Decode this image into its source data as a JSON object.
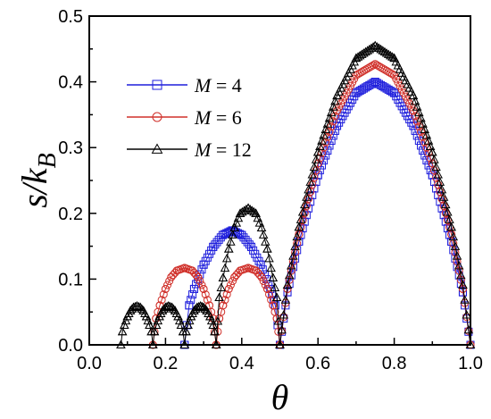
{
  "chart_data": {
    "type": "scatter",
    "xlabel": "θ",
    "ylabel": "s/k_B",
    "ylabel_main": "s/k",
    "ylabel_sub": "B",
    "xlim": [
      0.0,
      1.0
    ],
    "ylim": [
      0.0,
      0.5
    ],
    "xticks": [
      "0.0",
      "0.2",
      "0.4",
      "0.6",
      "0.8",
      "1.0"
    ],
    "yticks": [
      "0.0",
      "0.1",
      "0.2",
      "0.3",
      "0.4",
      "0.5"
    ],
    "grid": false,
    "legend_position": "upper-left",
    "series": [
      {
        "name": "M = 4",
        "marker": "square",
        "color": "#1f1fdc",
        "lobes": [
          {
            "x": [
              0.25,
              0.262,
              0.275,
              0.3,
              0.325,
              0.35,
              0.375,
              0.4,
              0.425,
              0.45,
              0.475,
              0.488,
              0.5
            ],
            "y": [
              0.0,
              0.06,
              0.085,
              0.122,
              0.149,
              0.167,
              0.174,
              0.167,
              0.149,
              0.122,
              0.085,
              0.06,
              0.0
            ]
          },
          {
            "x": [
              0.5,
              0.52,
              0.55,
              0.6,
              0.65,
              0.7,
              0.75,
              0.8,
              0.85,
              0.9,
              0.95,
              0.98,
              1.0
            ],
            "y": [
              0.0,
              0.08,
              0.157,
              0.258,
              0.333,
              0.383,
              0.4,
              0.383,
              0.333,
              0.258,
              0.157,
              0.08,
              0.0
            ]
          }
        ]
      },
      {
        "name": "M = 6",
        "marker": "circle",
        "color": "#d0302a",
        "lobes": [
          {
            "x": [
              0.167,
              0.175,
              0.185,
              0.2,
              0.215,
              0.23,
              0.25,
              0.27,
              0.285,
              0.3,
              0.315,
              0.325,
              0.333
            ],
            "y": [
              0.0,
              0.04,
              0.06,
              0.085,
              0.103,
              0.113,
              0.117,
              0.113,
              0.103,
              0.085,
              0.06,
              0.04,
              0.0
            ]
          },
          {
            "x": [
              0.333,
              0.341,
              0.351,
              0.366,
              0.381,
              0.396,
              0.417,
              0.437,
              0.452,
              0.467,
              0.482,
              0.492,
              0.5
            ],
            "y": [
              0.0,
              0.04,
              0.06,
              0.085,
              0.103,
              0.113,
              0.117,
              0.113,
              0.103,
              0.085,
              0.06,
              0.04,
              0.0
            ]
          },
          {
            "x": [
              0.5,
              0.52,
              0.55,
              0.6,
              0.65,
              0.7,
              0.75,
              0.8,
              0.85,
              0.9,
              0.95,
              0.98,
              1.0
            ],
            "y": [
              0.0,
              0.085,
              0.168,
              0.276,
              0.356,
              0.41,
              0.427,
              0.41,
              0.356,
              0.276,
              0.168,
              0.085,
              0.0
            ]
          }
        ]
      },
      {
        "name": "M = 12",
        "marker": "triangle",
        "color": "#000000",
        "lobes": [
          {
            "x": [
              0.083,
              0.087,
              0.092,
              0.1,
              0.108,
              0.116,
              0.125,
              0.134,
              0.142,
              0.15,
              0.158,
              0.163,
              0.167
            ],
            "y": [
              0.0,
              0.02,
              0.03,
              0.043,
              0.052,
              0.057,
              0.059,
              0.057,
              0.052,
              0.043,
              0.03,
              0.02,
              0.0
            ]
          },
          {
            "x": [
              0.167,
              0.171,
              0.176,
              0.184,
              0.192,
              0.2,
              0.208,
              0.217,
              0.225,
              0.233,
              0.241,
              0.246,
              0.25
            ],
            "y": [
              0.0,
              0.02,
              0.03,
              0.043,
              0.052,
              0.057,
              0.059,
              0.057,
              0.052,
              0.043,
              0.03,
              0.02,
              0.0
            ]
          },
          {
            "x": [
              0.25,
              0.254,
              0.259,
              0.267,
              0.275,
              0.283,
              0.292,
              0.3,
              0.308,
              0.317,
              0.325,
              0.329,
              0.333
            ],
            "y": [
              0.0,
              0.02,
              0.03,
              0.043,
              0.052,
              0.057,
              0.059,
              0.057,
              0.052,
              0.043,
              0.03,
              0.02,
              0.0
            ]
          },
          {
            "x": [
              0.333,
              0.341,
              0.351,
              0.366,
              0.381,
              0.396,
              0.417,
              0.437,
              0.452,
              0.467,
              0.482,
              0.492,
              0.5
            ],
            "y": [
              0.0,
              0.072,
              0.102,
              0.146,
              0.178,
              0.2,
              0.208,
              0.2,
              0.178,
              0.146,
              0.102,
              0.072,
              0.0
            ]
          },
          {
            "x": [
              0.5,
              0.52,
              0.55,
              0.6,
              0.65,
              0.7,
              0.75,
              0.8,
              0.85,
              0.9,
              0.95,
              0.98,
              1.0
            ],
            "y": [
              0.0,
              0.091,
              0.179,
              0.293,
              0.379,
              0.436,
              0.455,
              0.436,
              0.379,
              0.293,
              0.179,
              0.091,
              0.0
            ]
          }
        ]
      }
    ],
    "legend": [
      {
        "label_var": "M",
        "label_rest": " = 4",
        "series": 0
      },
      {
        "label_var": "M",
        "label_rest": " = 6",
        "series": 1
      },
      {
        "label_var": "M",
        "label_rest": " = 12",
        "series": 2
      }
    ]
  }
}
